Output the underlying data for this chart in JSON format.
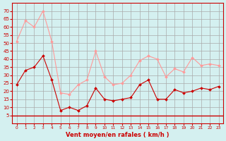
{
  "hours": [
    0,
    1,
    2,
    3,
    4,
    5,
    6,
    7,
    8,
    9,
    10,
    11,
    12,
    13,
    14,
    15,
    16,
    17,
    18,
    19,
    20,
    21,
    22,
    23
  ],
  "wind_avg": [
    24,
    33,
    35,
    42,
    27,
    8,
    10,
    8,
    11,
    22,
    15,
    14,
    15,
    16,
    24,
    27,
    15,
    15,
    21,
    19,
    20,
    22,
    21,
    23
  ],
  "wind_gust": [
    51,
    64,
    60,
    70,
    51,
    19,
    18,
    24,
    27,
    45,
    29,
    24,
    25,
    30,
    39,
    42,
    40,
    29,
    34,
    32,
    41,
    36,
    37,
    36
  ],
  "color_avg": "#cc0000",
  "color_gust": "#ff9999",
  "bg_color": "#d4f0f0",
  "grid_color": "#aaaaaa",
  "xlabel": "Vent moyen/en rafales ( km/h )",
  "ylim": [
    0,
    75
  ],
  "yticks": [
    5,
    10,
    15,
    20,
    25,
    30,
    35,
    40,
    45,
    50,
    55,
    60,
    65,
    70
  ],
  "xlabel_color": "#cc0000",
  "tick_color": "#cc0000"
}
